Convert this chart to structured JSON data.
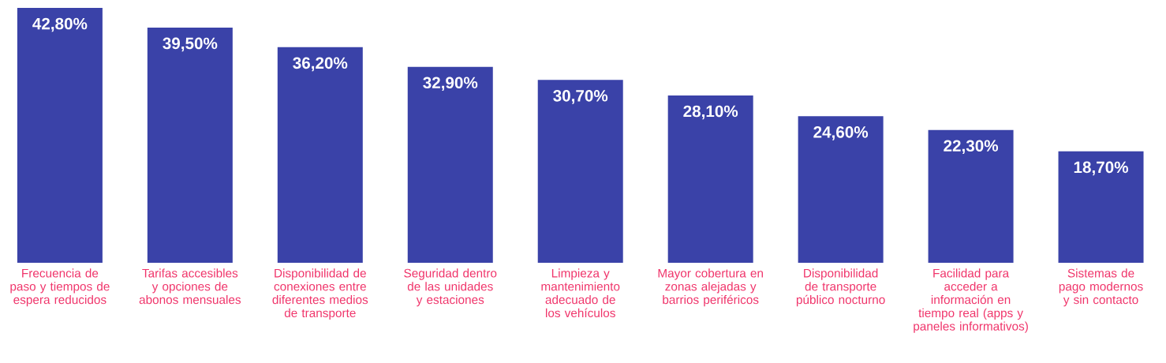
{
  "chart_data": {
    "type": "bar",
    "categories": [
      "Frecuencia de paso y tiempos de espera reducidos",
      "Tarifas accesibles y opciones de abonos mensuales",
      "Disponibilidad de conexiones entre diferentes medios de transporte",
      "Seguridad dentro de las unidades y estaciones",
      "Limpieza y mantenimiento adecuado de los vehículos",
      "Mayor cobertura en zonas alejadas y barrios periféricos",
      "Disponibilidad de transporte público nocturno",
      "Facilidad para acceder a información en tiempo real (apps y paneles informativos)",
      "Sistemas de pago modernos y sin contacto"
    ],
    "values": [
      42.8,
      39.5,
      36.2,
      32.9,
      30.7,
      28.1,
      24.6,
      22.3,
      18.7
    ],
    "value_labels": [
      "42,80%",
      "39,50%",
      "36,20%",
      "32,90%",
      "30,70%",
      "28,10%",
      "24,60%",
      "22,30%",
      "18,70%"
    ],
    "color": "#3a42a8"
  }
}
